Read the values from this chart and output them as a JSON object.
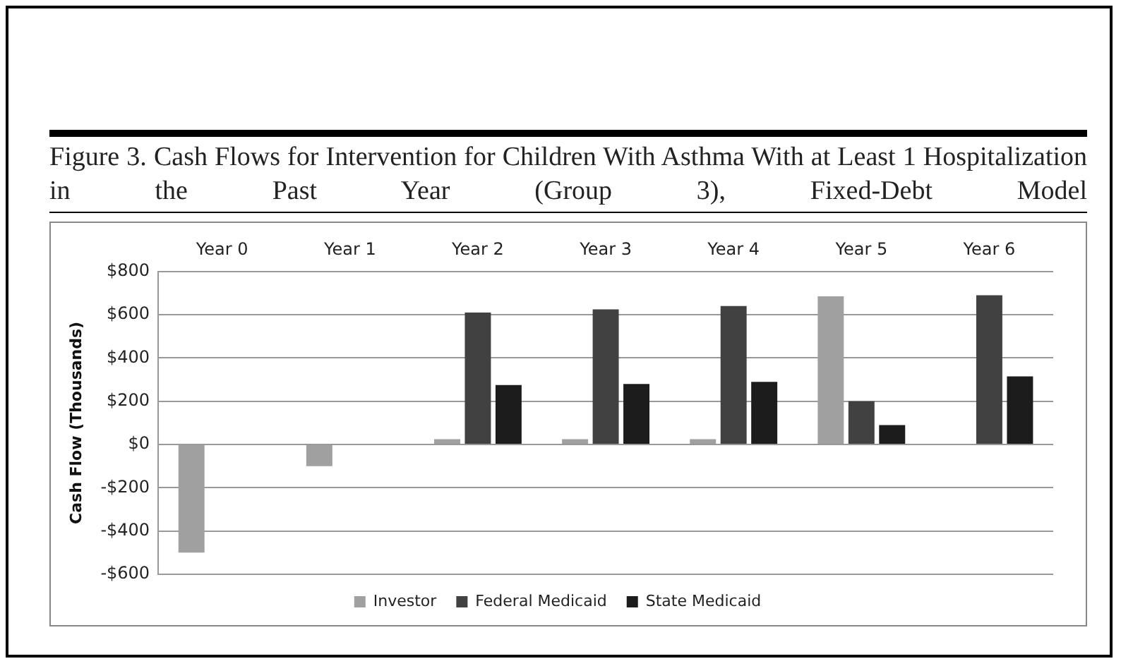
{
  "chart_data": {
    "type": "bar",
    "title": "Figure 3.  Cash Flows for Intervention for Children With Asthma With at Least 1 Hospitalization in the Past Year (Group 3), Fixed-Debt Model",
    "ylabel": "Cash Flow (Thousands)",
    "categories": [
      "Year 0",
      "Year 1",
      "Year 2",
      "Year 3",
      "Year 4",
      "Year 5",
      "Year 6"
    ],
    "series": [
      {
        "name": "Investor",
        "color": "#a0a0a0",
        "values": [
          -500,
          -100,
          25,
          25,
          25,
          685,
          0
        ]
      },
      {
        "name": "Federal Medicaid",
        "color": "#414141",
        "values": [
          0,
          0,
          610,
          625,
          640,
          200,
          690
        ]
      },
      {
        "name": "State Medicaid",
        "color": "#1c1c1c",
        "values": [
          0,
          0,
          275,
          280,
          290,
          90,
          315
        ]
      }
    ],
    "ylim": [
      -600,
      800
    ],
    "yticks": [
      {
        "value": -600,
        "label": "-$600"
      },
      {
        "value": -400,
        "label": "-$400"
      },
      {
        "value": -200,
        "label": "-$200"
      },
      {
        "value": 0,
        "label": "$0"
      },
      {
        "value": 200,
        "label": "$200"
      },
      {
        "value": 400,
        "label": "$400"
      },
      {
        "value": 600,
        "label": "$600"
      },
      {
        "value": 800,
        "label": "$800"
      }
    ],
    "grid": "y",
    "legend": "bottom"
  }
}
